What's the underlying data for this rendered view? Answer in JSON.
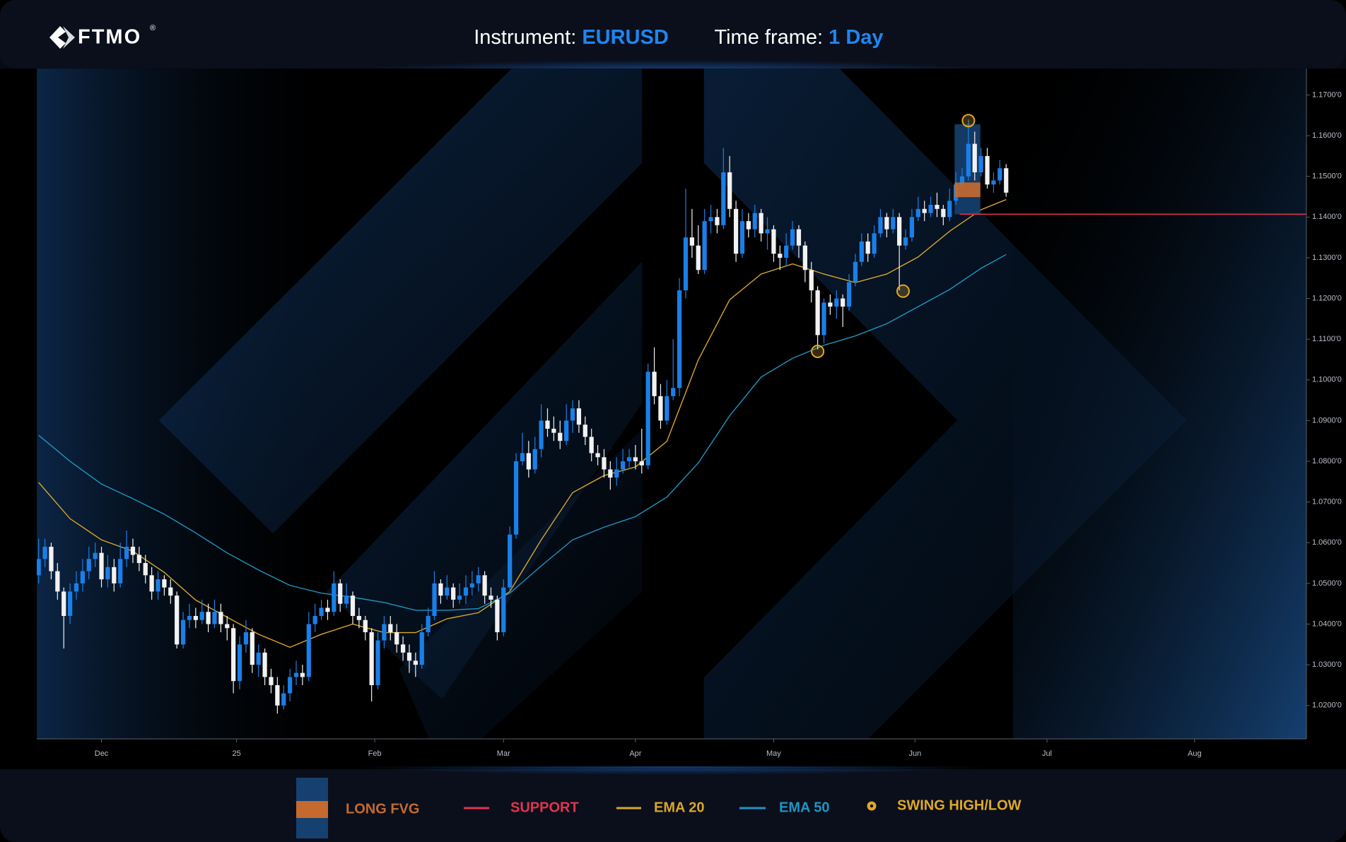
{
  "header": {
    "brand": "FTMO",
    "registered": "®",
    "instrument_label": "Instrument:",
    "instrument": "EURUSD",
    "timeframe_label": "Time frame:",
    "timeframe": "1 Day"
  },
  "chart_data": {
    "type": "candlestick",
    "xlim": [
      -0.3,
      201.8
    ],
    "xticks": [
      {
        "value": 10,
        "label": "Dec"
      },
      {
        "value": 31.5,
        "label": "25"
      },
      {
        "value": 53.5,
        "label": "Feb"
      },
      {
        "value": 74,
        "label": "Mar"
      },
      {
        "value": 95,
        "label": "Apr"
      },
      {
        "value": 117,
        "label": "May"
      },
      {
        "value": 139.5,
        "label": "Jun"
      },
      {
        "value": 160.5,
        "label": "Jul"
      },
      {
        "value": 184,
        "label": "Aug"
      }
    ],
    "ylim": [
      1.0118,
      1.1765
    ],
    "yticks": [
      {
        "value": 1.02,
        "label": "1.0200'0"
      },
      {
        "value": 1.03,
        "label": "1.0300'0"
      },
      {
        "value": 1.04,
        "label": "1.0400'0"
      },
      {
        "value": 1.05,
        "label": "1.0500'0"
      },
      {
        "value": 1.06,
        "label": "1.0600'0"
      },
      {
        "value": 1.07,
        "label": "1.0700'0"
      },
      {
        "value": 1.08,
        "label": "1.0800'0"
      },
      {
        "value": 1.09,
        "label": "1.0900'0"
      },
      {
        "value": 1.1,
        "label": "1.1000'0"
      },
      {
        "value": 1.11,
        "label": "1.1100'0"
      },
      {
        "value": 1.12,
        "label": "1.1200'0"
      },
      {
        "value": 1.13,
        "label": "1.1300'0"
      },
      {
        "value": 1.14,
        "label": "1.1400'0"
      },
      {
        "value": 1.15,
        "label": "1.1500'0"
      },
      {
        "value": 1.16,
        "label": "1.1600'0"
      },
      {
        "value": 1.17,
        "label": "1.1700'0"
      }
    ],
    "up_color": "#1a7fe8",
    "down_color": "#f2f2f2",
    "open": [
      1.052,
      1.056,
      1.059,
      1.053,
      1.048,
      1.042,
      1.048,
      1.05,
      1.053,
      1.056,
      1.0575,
      1.051,
      1.054,
      1.05,
      1.056,
      1.059,
      1.057,
      1.055,
      1.052,
      1.048,
      1.051,
      1.049,
      1.047,
      1.035,
      1.041,
      1.042,
      1.041,
      1.043,
      1.04,
      1.043,
      1.04,
      1.039,
      1.026,
      1.035,
      1.038,
      1.03,
      1.033,
      1.027,
      1.025,
      1.02,
      1.023,
      1.027,
      1.028,
      1.027,
      1.04,
      1.042,
      1.044,
      1.043,
      1.05,
      1.045,
      1.047,
      1.042,
      1.041,
      1.038,
      1.025,
      1.036,
      1.04,
      1.038,
      1.035,
      1.033,
      1.031,
      1.03,
      1.038,
      1.042,
      1.05,
      1.047,
      1.049,
      1.046,
      1.047,
      1.049,
      1.05,
      1.052,
      1.047,
      1.046,
      1.038,
      1.049,
      1.062,
      1.08,
      1.082,
      1.078,
      1.083,
      1.09,
      1.088,
      1.087,
      1.085,
      1.09,
      1.093,
      1.089,
      1.086,
      1.082,
      1.081,
      1.078,
      1.076,
      1.078,
      1.08,
      1.081,
      1.08,
      1.079,
      1.102,
      1.096,
      1.09,
      1.096,
      1.098,
      1.122,
      1.135,
      1.133,
      1.127,
      1.139,
      1.14,
      1.138,
      1.151,
      1.142,
      1.131,
      1.139,
      1.137,
      1.141,
      1.136,
      1.137,
      1.131,
      1.13,
      1.133,
      1.137,
      1.133,
      1.127,
      1.122,
      1.111,
      1.119,
      1.118,
      1.12,
      1.118,
      1.124,
      1.129,
      1.134,
      1.131,
      1.136,
      1.14,
      1.137,
      1.14,
      1.133,
      1.135,
      1.14,
      1.142,
      1.141,
      1.143,
      1.142,
      1.14,
      1.144,
      1.148,
      1.15,
      1.158,
      1.151,
      1.155,
      1.148,
      1.149,
      1.152
    ],
    "high": [
      1.061,
      1.061,
      1.06,
      1.055,
      1.049,
      1.05,
      1.053,
      1.056,
      1.059,
      1.06,
      1.059,
      1.057,
      1.056,
      1.06,
      1.063,
      1.061,
      1.059,
      1.057,
      1.054,
      1.053,
      1.052,
      1.051,
      1.048,
      1.043,
      1.045,
      1.044,
      1.046,
      1.045,
      1.046,
      1.045,
      1.042,
      1.04,
      1.037,
      1.041,
      1.039,
      1.035,
      1.034,
      1.029,
      1.027,
      1.025,
      1.029,
      1.031,
      1.03,
      1.043,
      1.045,
      1.046,
      1.046,
      1.053,
      1.051,
      1.05,
      1.048,
      1.044,
      1.042,
      1.039,
      1.038,
      1.042,
      1.042,
      1.04,
      1.037,
      1.035,
      1.033,
      1.04,
      1.044,
      1.053,
      1.051,
      1.052,
      1.05,
      1.05,
      1.052,
      1.053,
      1.054,
      1.053,
      1.049,
      1.047,
      1.051,
      1.064,
      1.082,
      1.087,
      1.085,
      1.086,
      1.094,
      1.093,
      1.091,
      1.09,
      1.094,
      1.095,
      1.095,
      1.091,
      1.088,
      1.084,
      1.083,
      1.08,
      1.081,
      1.083,
      1.083,
      1.084,
      1.088,
      1.104,
      1.108,
      1.099,
      1.1,
      1.11,
      1.125,
      1.147,
      1.142,
      1.138,
      1.142,
      1.143,
      1.142,
      1.157,
      1.155,
      1.144,
      1.142,
      1.141,
      1.143,
      1.142,
      1.14,
      1.138,
      1.133,
      1.136,
      1.139,
      1.138,
      1.134,
      1.129,
      1.123,
      1.12,
      1.121,
      1.122,
      1.121,
      1.126,
      1.131,
      1.136,
      1.136,
      1.138,
      1.142,
      1.141,
      1.142,
      1.141,
      1.137,
      1.142,
      1.145,
      1.144,
      1.145,
      1.146,
      1.143,
      1.147,
      1.151,
      1.152,
      1.164,
      1.161,
      1.157,
      1.157,
      1.151,
      1.154,
      1.153
    ],
    "low": [
      1.05,
      1.054,
      1.051,
      1.046,
      1.034,
      1.04,
      1.046,
      1.048,
      1.051,
      1.054,
      1.049,
      1.049,
      1.048,
      1.049,
      1.054,
      1.055,
      1.053,
      1.05,
      1.046,
      1.046,
      1.047,
      1.045,
      1.034,
      1.034,
      1.039,
      1.039,
      1.04,
      1.038,
      1.039,
      1.038,
      1.036,
      1.023,
      1.024,
      1.033,
      1.028,
      1.027,
      1.025,
      1.023,
      1.018,
      1.019,
      1.021,
      1.025,
      1.025,
      1.026,
      1.038,
      1.041,
      1.041,
      1.042,
      1.043,
      1.044,
      1.04,
      1.039,
      1.036,
      1.021,
      1.024,
      1.034,
      1.036,
      1.033,
      1.031,
      1.028,
      1.027,
      1.029,
      1.037,
      1.041,
      1.045,
      1.046,
      1.044,
      1.045,
      1.045,
      1.047,
      1.048,
      1.045,
      1.044,
      1.036,
      1.037,
      1.048,
      1.061,
      1.079,
      1.076,
      1.077,
      1.081,
      1.086,
      1.085,
      1.083,
      1.084,
      1.087,
      1.087,
      1.084,
      1.08,
      1.079,
      1.076,
      1.073,
      1.074,
      1.077,
      1.078,
      1.078,
      1.077,
      1.078,
      1.094,
      1.088,
      1.089,
      1.095,
      1.096,
      1.12,
      1.13,
      1.126,
      1.126,
      1.136,
      1.136,
      1.137,
      1.14,
      1.129,
      1.13,
      1.135,
      1.135,
      1.134,
      1.132,
      1.129,
      1.127,
      1.128,
      1.132,
      1.13,
      1.124,
      1.119,
      1.1075,
      1.109,
      1.116,
      1.115,
      1.113,
      1.117,
      1.123,
      1.128,
      1.129,
      1.13,
      1.135,
      1.135,
      1.136,
      1.122,
      1.132,
      1.134,
      1.139,
      1.139,
      1.14,
      1.14,
      1.138,
      1.139,
      1.143,
      1.147,
      1.149,
      1.149,
      1.15,
      1.147,
      1.146,
      1.148,
      1.145
    ],
    "close": [
      1.056,
      1.059,
      1.053,
      1.048,
      1.042,
      1.048,
      1.05,
      1.053,
      1.056,
      1.0575,
      1.051,
      1.054,
      1.05,
      1.056,
      1.059,
      1.057,
      1.055,
      1.052,
      1.048,
      1.051,
      1.049,
      1.047,
      1.035,
      1.041,
      1.042,
      1.041,
      1.043,
      1.04,
      1.043,
      1.04,
      1.039,
      1.026,
      1.035,
      1.038,
      1.03,
      1.033,
      1.027,
      1.025,
      1.02,
      1.023,
      1.027,
      1.028,
      1.027,
      1.04,
      1.042,
      1.044,
      1.043,
      1.05,
      1.045,
      1.047,
      1.042,
      1.041,
      1.038,
      1.025,
      1.036,
      1.04,
      1.038,
      1.035,
      1.033,
      1.031,
      1.03,
      1.038,
      1.042,
      1.05,
      1.047,
      1.049,
      1.046,
      1.047,
      1.049,
      1.05,
      1.052,
      1.047,
      1.046,
      1.038,
      1.049,
      1.062,
      1.08,
      1.082,
      1.078,
      1.083,
      1.09,
      1.088,
      1.087,
      1.085,
      1.09,
      1.093,
      1.089,
      1.086,
      1.082,
      1.081,
      1.078,
      1.076,
      1.078,
      1.08,
      1.081,
      1.08,
      1.079,
      1.102,
      1.096,
      1.09,
      1.096,
      1.098,
      1.122,
      1.135,
      1.133,
      1.127,
      1.139,
      1.14,
      1.138,
      1.151,
      1.142,
      1.131,
      1.139,
      1.137,
      1.141,
      1.136,
      1.137,
      1.131,
      1.13,
      1.133,
      1.137,
      1.133,
      1.127,
      1.122,
      1.111,
      1.119,
      1.118,
      1.12,
      1.118,
      1.124,
      1.129,
      1.134,
      1.131,
      1.136,
      1.14,
      1.137,
      1.14,
      1.133,
      1.135,
      1.14,
      1.142,
      1.141,
      1.143,
      1.142,
      1.14,
      1.144,
      1.148,
      1.15,
      1.158,
      1.151,
      1.155,
      1.148,
      1.149,
      1.152,
      1.146
    ],
    "series": [
      {
        "name": "EMA 20",
        "color": "#d9a52a",
        "x": [
          0,
          5,
          10,
          15,
          20,
          25,
          30,
          35,
          40,
          45,
          50,
          55,
          60,
          65,
          70,
          75,
          80,
          85,
          90,
          95,
          100,
          105,
          110,
          115,
          120,
          125,
          130,
          135,
          140,
          145,
          150,
          154
        ],
        "values": [
          1.0748,
          1.0659,
          1.0607,
          1.0579,
          1.0527,
          1.0459,
          1.0417,
          1.0375,
          1.0343,
          1.0375,
          1.04,
          1.0379,
          1.0379,
          1.0413,
          1.0428,
          1.048,
          1.0607,
          1.0723,
          1.0765,
          1.0786,
          1.0849,
          1.1049,
          1.1197,
          1.126,
          1.1285,
          1.126,
          1.1239,
          1.126,
          1.1302,
          1.1365,
          1.1418,
          1.1443
        ]
      },
      {
        "name": "EMA 50",
        "color": "#1e95c0",
        "x": [
          0,
          5,
          10,
          15,
          20,
          25,
          30,
          35,
          40,
          45,
          50,
          55,
          60,
          65,
          70,
          75,
          80,
          85,
          90,
          95,
          100,
          105,
          110,
          115,
          120,
          125,
          130,
          135,
          140,
          145,
          150,
          154
        ],
        "values": [
          1.0864,
          1.08,
          1.0744,
          1.0708,
          1.067,
          1.0624,
          1.0575,
          1.0533,
          1.0495,
          1.0476,
          1.0466,
          1.0453,
          1.0434,
          1.0434,
          1.0438,
          1.0476,
          1.0543,
          1.0607,
          1.0638,
          1.0664,
          1.0712,
          1.0796,
          1.0912,
          1.1007,
          1.1053,
          1.1085,
          1.1108,
          1.1138,
          1.118,
          1.1222,
          1.1274,
          1.1308
        ]
      }
    ],
    "support": {
      "name": "SUPPORT",
      "color": "#e0344f",
      "value": 1.1407,
      "start": 146.6
    },
    "fvg": {
      "name": "LONG FVG",
      "color": "#c46a2f",
      "zone_color": "#16406f",
      "start": 145.8,
      "end": 149.9,
      "top": 1.1485,
      "bottom": 1.1449,
      "zone": [
        1.1407,
        1.1628
      ]
    },
    "swings": {
      "name": "SWING HIGH/LOW",
      "color": "#e0a828",
      "x": [
        148,
        137.6,
        124
      ],
      "values": [
        1.1637,
        1.1218,
        1.107
      ]
    }
  }
}
